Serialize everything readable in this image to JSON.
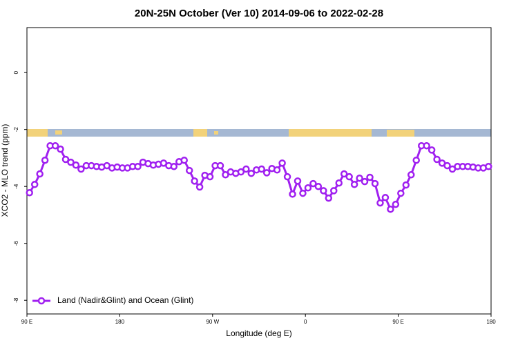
{
  "chart_data": {
    "type": "line",
    "title": "20N-25N October (Ver 10)   2014-09-06 to 2022-02-28",
    "x_label": "Longitude (deg E)",
    "y_label": "XCO2 - MLO trend (ppm)",
    "xlim": [
      90,
      540
    ],
    "ylim": [
      -8.48,
      1.58
    ],
    "xticks": [
      {
        "value": 90,
        "label": "90 E"
      },
      180,
      {
        "value": 270,
        "label": "90 W"
      },
      {
        "value": 360,
        "label": "0"
      },
      {
        "value": 450,
        "label": "90 E"
      },
      {
        "value": 540,
        "label": "180"
      }
    ],
    "yticks": [
      0,
      -2,
      -4,
      -6,
      -8
    ],
    "legend": "bottom-left",
    "x": [
      92.5,
      97.5,
      102.5,
      107.5,
      112.5,
      117.5,
      122.5,
      127.5,
      132.5,
      137.5,
      142.5,
      147.5,
      152.5,
      157.5,
      162.5,
      167.5,
      172.5,
      177.5,
      182.5,
      187.5,
      192.5,
      197.5,
      202.5,
      207.5,
      212.5,
      217.5,
      222.5,
      227.5,
      232.5,
      237.5,
      242.5,
      247.5,
      252.5,
      257.5,
      262.5,
      267.5,
      272.5,
      277.5,
      282.5,
      287.5,
      292.5,
      297.5,
      302.5,
      307.5,
      312.5,
      317.5,
      322.5,
      327.5,
      332.5,
      337.5,
      342.5,
      347.5,
      352.5,
      357.5,
      362.5,
      367.5,
      372.5,
      377.5,
      382.5,
      387.5,
      392.5,
      397.5,
      402.5,
      407.5,
      412.5,
      417.5,
      422.5,
      427.5,
      432.5,
      437.5,
      442.5,
      447.5,
      452.5,
      457.5,
      462.5,
      467.5,
      472.5,
      477.5,
      482.5,
      487.5,
      492.5,
      497.5,
      502.5,
      507.5,
      512.5,
      517.5,
      522.5,
      527.5,
      532.5,
      537.5
    ],
    "series": [
      {
        "name": "Land (Nadir&Glint) and Ocean (Glint)",
        "color": "#a020f0",
        "values": [
          -4.22,
          -3.93,
          -3.56,
          -3.08,
          -2.57,
          -2.57,
          -2.69,
          -3.05,
          -3.15,
          -3.25,
          -3.39,
          -3.27,
          -3.27,
          -3.3,
          -3.32,
          -3.27,
          -3.35,
          -3.32,
          -3.35,
          -3.35,
          -3.3,
          -3.3,
          -3.15,
          -3.2,
          -3.25,
          -3.22,
          -3.18,
          -3.27,
          -3.3,
          -3.13,
          -3.08,
          -3.44,
          -3.81,
          -4.02,
          -3.61,
          -3.66,
          -3.27,
          -3.27,
          -3.59,
          -3.49,
          -3.54,
          -3.49,
          -3.39,
          -3.54,
          -3.42,
          -3.39,
          -3.52,
          -3.37,
          -3.42,
          -3.18,
          -3.66,
          -4.27,
          -3.81,
          -4.24,
          -4.05,
          -3.9,
          -4.0,
          -4.15,
          -4.41,
          -4.15,
          -3.88,
          -3.56,
          -3.66,
          -3.93,
          -3.71,
          -3.83,
          -3.68,
          -3.9,
          -4.58,
          -4.39,
          -4.8,
          -4.63,
          -4.24,
          -3.95,
          -3.59,
          -3.08,
          -2.57,
          -2.57,
          -2.72,
          -3.05,
          -3.18,
          -3.27,
          -3.39,
          -3.3,
          -3.3,
          -3.3,
          -3.32,
          -3.35,
          -3.35,
          -3.3
        ]
      }
    ]
  }
}
